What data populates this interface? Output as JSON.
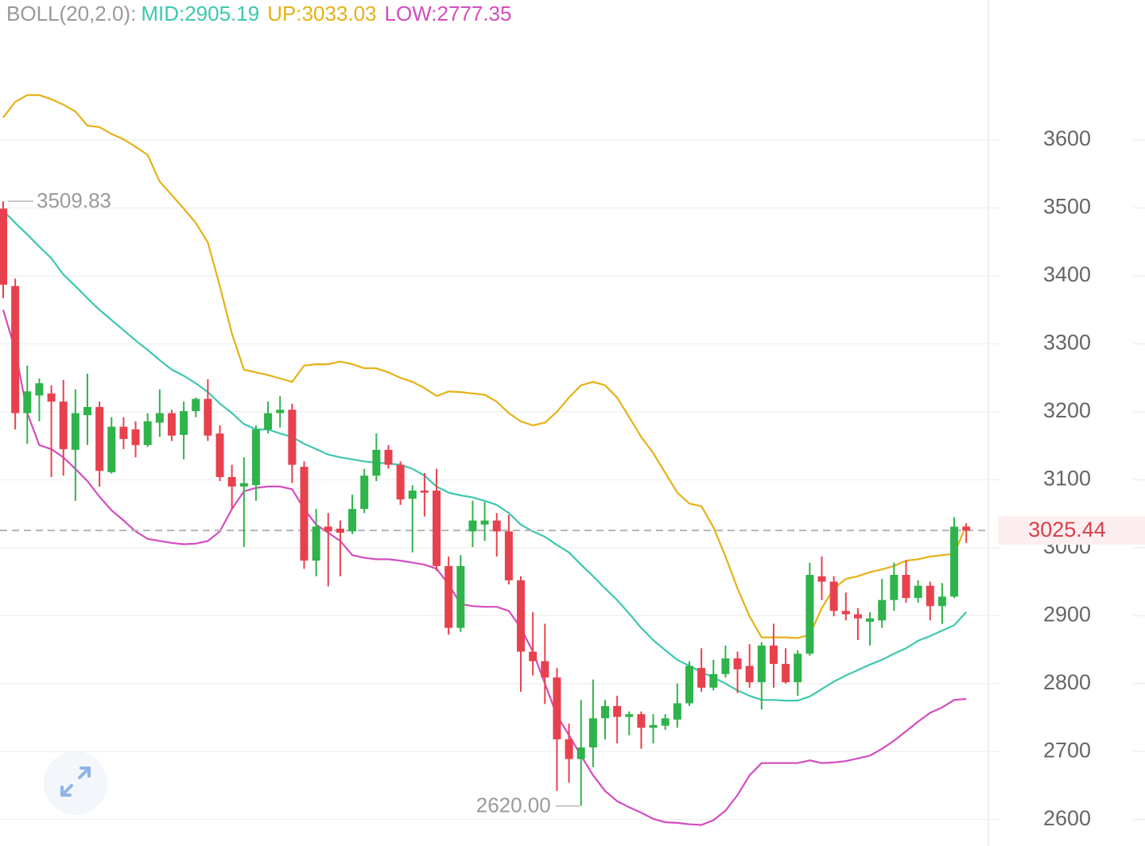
{
  "chart_data": {
    "type": "candlestick",
    "indicator_label": "BOLL(20,2.0):",
    "ylim": [
      2561,
      3806
    ],
    "yticks": [
      2600,
      2700,
      2800,
      2900,
      3000,
      3100,
      3200,
      3300,
      3400,
      3500,
      3600
    ],
    "grid": true,
    "up_color": "#2fb34b",
    "down_color": "#e8414e",
    "candles": {
      "open": [
        3499,
        3385,
        3198,
        3224,
        3227,
        3215,
        3144,
        3195,
        3207,
        3111,
        3178,
        3174,
        3151,
        3184,
        3198,
        3166,
        3201,
        3219,
        3168,
        3104,
        3090,
        3092,
        3174,
        3198,
        3203,
        3119,
        2981,
        3031,
        3028,
        3024,
        3057,
        3106,
        3144,
        3122,
        3072,
        3084,
        3084,
        2973,
        2882,
        3024,
        3034,
        3040,
        3024,
        2952,
        2847,
        2833,
        2809,
        2718,
        2689,
        2706,
        2749,
        2767,
        2751,
        2755,
        2735,
        2738,
        2747,
        2771,
        2823,
        2794,
        2814,
        2837,
        2826,
        2802,
        2856,
        2829,
        2802,
        2844,
        2958,
        2950,
        2907,
        2902,
        2891,
        2893,
        2923,
        2960,
        2926,
        2944,
        2914,
        2928,
        3031
      ],
      "high": [
        3509.83,
        3396,
        3268,
        3249,
        3239,
        3247,
        3233,
        3256,
        3215,
        3192,
        3192,
        3186,
        3198,
        3233,
        3203,
        3215,
        3221,
        3248,
        3180,
        3122,
        3133,
        3180,
        3215,
        3223,
        3212,
        3127,
        3057,
        3051,
        3040,
        3078,
        3116,
        3168,
        3151,
        3127,
        3092,
        3110,
        3116,
        2987,
        2989,
        3069,
        3067,
        3051,
        3048,
        2958,
        2905,
        2888,
        2823,
        2741,
        2776,
        2806,
        2776,
        2782,
        2759,
        2759,
        2755,
        2755,
        2800,
        2833,
        2852,
        2835,
        2856,
        2847,
        2858,
        2861,
        2888,
        2852,
        2849,
        2978,
        2987,
        2958,
        2934,
        2911,
        2905,
        2954,
        2978,
        2981,
        2952,
        2950,
        2948,
        3045,
        3036
      ],
      "low": [
        3367,
        3174,
        3153,
        3186,
        3104,
        3106,
        3069,
        3151,
        3090,
        3109,
        3145,
        3133,
        3148,
        3163,
        3157,
        3130,
        3192,
        3157,
        3098,
        3057,
        3001,
        3069,
        3168,
        3177,
        3095,
        2969,
        2958,
        2943,
        2958,
        3020,
        3051,
        3098,
        3116,
        3063,
        2993,
        3046,
        2966,
        2872,
        2876,
        3001,
        3010,
        2987,
        2946,
        2788,
        2812,
        2770,
        2642,
        2654,
        2620,
        2677,
        2718,
        2712,
        2724,
        2704,
        2712,
        2732,
        2735,
        2767,
        2788,
        2790,
        2809,
        2786,
        2794,
        2762,
        2794,
        2800,
        2782,
        2841,
        2923,
        2899,
        2893,
        2864,
        2856,
        2882,
        2907,
        2919,
        2919,
        2893,
        2888,
        2926,
        3007
      ],
      "close": [
        3387,
        3198,
        3230,
        3242,
        3215,
        3145,
        3198,
        3207,
        3113,
        3178,
        3160,
        3151,
        3186,
        3198,
        3165,
        3201,
        3219,
        3165,
        3104,
        3090,
        3095,
        3174,
        3198,
        3203,
        3122,
        2981,
        3031,
        3024,
        3022,
        3057,
        3106,
        3144,
        3122,
        3071,
        3084,
        3081,
        2973,
        2882,
        2973,
        3040,
        3040,
        3024,
        2952,
        2847,
        2833,
        2809,
        2718,
        2689,
        2706,
        2749,
        2767,
        2751,
        2755,
        2735,
        2739,
        2749,
        2771,
        2826,
        2794,
        2814,
        2837,
        2821,
        2802,
        2856,
        2829,
        2802,
        2844,
        2960,
        2950,
        2907,
        2902,
        2896,
        2896,
        2923,
        2960,
        2926,
        2944,
        2914,
        2928,
        3031,
        3025.44
      ]
    },
    "series": [
      {
        "name": "MID:2905.19",
        "color": "#3cc8ae",
        "values": [
          3496,
          3478,
          3461,
          3443,
          3426,
          3402,
          3385,
          3367,
          3350,
          3335,
          3320,
          3305,
          3291,
          3276,
          3262,
          3253,
          3242,
          3229,
          3212,
          3198,
          3182,
          3174,
          3174,
          3168,
          3163,
          3153,
          3145,
          3137,
          3133,
          3130,
          3127,
          3125,
          3124,
          3122,
          3116,
          3106,
          3090,
          3081,
          3077,
          3074,
          3069,
          3063,
          3051,
          3034,
          3024,
          3016,
          3004,
          2993,
          2975,
          2958,
          2940,
          2923,
          2903,
          2882,
          2864,
          2849,
          2835,
          2826,
          2817,
          2809,
          2800,
          2790,
          2782,
          2776,
          2776,
          2775,
          2775,
          2781,
          2792,
          2803,
          2812,
          2820,
          2828,
          2835,
          2844,
          2852,
          2863,
          2870,
          2878,
          2886,
          2905.19
        ]
      },
      {
        "name": "UP:3033.03",
        "color": "#e6b116",
        "values": [
          3633,
          3656,
          3666,
          3666,
          3660,
          3652,
          3642,
          3621,
          3619,
          3609,
          3601,
          3590,
          3578,
          3539,
          3519,
          3499,
          3478,
          3449,
          3385,
          3315,
          3262,
          3258,
          3254,
          3249,
          3244,
          3268,
          3270,
          3270,
          3274,
          3270,
          3264,
          3264,
          3258,
          3250,
          3244,
          3235,
          3223,
          3230,
          3229,
          3227,
          3225,
          3215,
          3198,
          3186,
          3180,
          3184,
          3200,
          3221,
          3239,
          3244,
          3239,
          3221,
          3192,
          3163,
          3139,
          3110,
          3081,
          3065,
          3061,
          3030,
          2987,
          2940,
          2899,
          2868,
          2868,
          2868,
          2867,
          2872,
          2911,
          2940,
          2954,
          2958,
          2964,
          2968,
          2973,
          2981,
          2983,
          2987,
          2989,
          2991,
          3033.03
        ]
      },
      {
        "name": "LOW:2777.35",
        "color": "#d44cc0",
        "values": [
          3350,
          3291,
          3198,
          3151,
          3145,
          3133,
          3116,
          3098,
          3075,
          3055,
          3040,
          3024,
          3013,
          3010,
          3007,
          3005,
          3006,
          3010,
          3024,
          3057,
          3083,
          3088,
          3090,
          3090,
          3086,
          3057,
          3034,
          3022,
          3010,
          2989,
          2985,
          2983,
          2983,
          2981,
          2978,
          2975,
          2969,
          2946,
          2917,
          2914,
          2913,
          2913,
          2907,
          2882,
          2847,
          2800,
          2753,
          2724,
          2694,
          2665,
          2642,
          2627,
          2618,
          2610,
          2601,
          2596,
          2595,
          2593,
          2592,
          2599,
          2613,
          2636,
          2665,
          2683,
          2683,
          2683,
          2683,
          2687,
          2683,
          2684,
          2686,
          2690,
          2694,
          2704,
          2716,
          2730,
          2744,
          2757,
          2765,
          2776,
          2777.35
        ]
      }
    ],
    "annotations": [
      {
        "value": 3509.83,
        "label": "3509.83"
      },
      {
        "value": 2620,
        "label": "2620.00"
      }
    ],
    "last_price": {
      "value": 3025.44,
      "label": "3025.44"
    }
  }
}
